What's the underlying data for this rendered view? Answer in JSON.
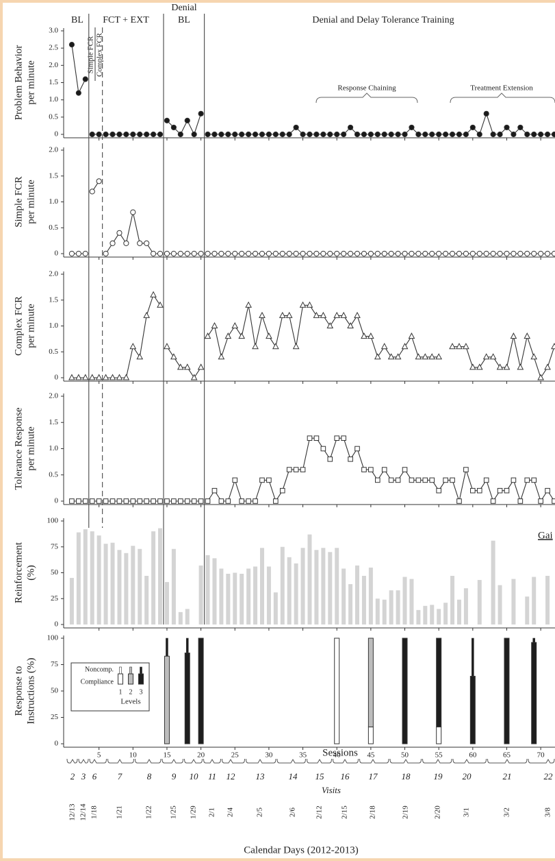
{
  "chart_data": [
    {
      "type": "line",
      "ylabel": [
        "Problem Behavior",
        "per minute"
      ],
      "xlim": [
        0,
        72
      ],
      "ylim": [
        0,
        3
      ],
      "yticks": [
        0,
        0.5,
        {
          "value": 1,
          "label": "1.0"
        },
        1.5,
        {
          "value": 2,
          "label": "2.0"
        },
        2.5,
        {
          "value": 3,
          "label": "3.0"
        }
      ],
      "marker": "filled-circle",
      "x": [
        1,
        2,
        3,
        4,
        5,
        6,
        7,
        8,
        9,
        10,
        11,
        12,
        13,
        14,
        15,
        16,
        17,
        18,
        19,
        20,
        21,
        22,
        23,
        24,
        25,
        26,
        27,
        28,
        29,
        30,
        31,
        32,
        33,
        34,
        35,
        36,
        37,
        38,
        39,
        40,
        41,
        42,
        43,
        44,
        45,
        46,
        47,
        48,
        49,
        50,
        51,
        52,
        53,
        54,
        55,
        56,
        57,
        58,
        59,
        60,
        61,
        62,
        63,
        64,
        65,
        66,
        67,
        68,
        69,
        70,
        71,
        72
      ],
      "values": [
        2.6,
        1.2,
        1.6,
        0,
        0,
        0,
        0,
        0,
        0,
        0,
        0,
        0,
        0,
        0,
        0.4,
        0.2,
        0,
        0.4,
        0,
        0.6,
        0,
        0,
        0,
        0,
        0,
        0,
        0,
        0,
        0,
        0,
        0,
        0,
        0,
        0.2,
        0,
        0,
        0,
        0,
        0,
        0,
        0,
        0.2,
        0,
        0,
        0,
        0,
        0,
        0,
        0,
        0,
        0.2,
        0,
        0,
        0,
        0,
        0,
        0,
        0,
        0,
        0.2,
        0,
        0.6,
        0,
        0,
        0.2,
        0,
        0.2,
        0,
        0,
        0,
        0,
        0
      ]
    },
    {
      "type": "line",
      "ylabel": [
        "Simple FCR",
        "per minute"
      ],
      "xlim": [
        0,
        72
      ],
      "ylim": [
        0,
        2
      ],
      "yticks": [
        0,
        0.5,
        {
          "value": 1,
          "label": "1.0"
        },
        1.5,
        {
          "value": 2,
          "label": "2.0"
        }
      ],
      "marker": "open-circle",
      "x": [
        1,
        2,
        3,
        4,
        5,
        6,
        7,
        8,
        9,
        10,
        11,
        12,
        13,
        14,
        15,
        16,
        17,
        18,
        19,
        20,
        21,
        22,
        23,
        24,
        25,
        26,
        27,
        28,
        29,
        30,
        31,
        32,
        33,
        34,
        35,
        36,
        37,
        38,
        39,
        40,
        41,
        42,
        43,
        44,
        45,
        46,
        47,
        48,
        49,
        50,
        51,
        52,
        53,
        54,
        55,
        56,
        57,
        58,
        59,
        60,
        61,
        62,
        63,
        64,
        65,
        66,
        67,
        68,
        69,
        70,
        71,
        72
      ],
      "values": [
        0,
        0,
        0,
        1.2,
        1.4,
        0,
        0.2,
        0.4,
        0.2,
        0.8,
        0.2,
        0.2,
        0,
        0,
        0,
        0,
        0,
        0,
        0,
        0,
        0,
        0,
        0,
        0,
        0,
        0,
        0,
        0,
        0,
        0,
        0,
        0,
        0,
        0,
        0,
        0,
        0,
        0,
        0,
        0,
        0,
        0,
        0,
        0,
        0,
        0,
        0,
        0,
        0,
        0,
        0,
        0,
        0,
        0,
        0,
        0,
        0,
        0,
        0,
        0,
        0,
        0,
        0,
        0,
        0,
        0,
        0,
        0,
        0,
        0,
        0,
        0
      ]
    },
    {
      "type": "line",
      "ylabel": [
        "Complex FCR",
        "per minute"
      ],
      "xlim": [
        0,
        72
      ],
      "ylim": [
        0,
        2
      ],
      "yticks": [
        0,
        0.5,
        {
          "value": 1,
          "label": "1.0"
        },
        1.5,
        {
          "value": 2,
          "label": "2.0"
        }
      ],
      "marker": "open-triangle",
      "x": [
        1,
        2,
        3,
        4,
        5,
        6,
        7,
        8,
        9,
        10,
        11,
        12,
        13,
        14,
        15,
        16,
        17,
        18,
        19,
        20,
        21,
        22,
        23,
        24,
        25,
        26,
        27,
        28,
        29,
        30,
        31,
        32,
        33,
        34,
        35,
        36,
        37,
        38,
        39,
        40,
        41,
        42,
        43,
        44,
        45,
        46,
        47,
        48,
        49,
        50,
        51,
        52,
        53,
        54,
        55,
        56,
        57,
        58,
        59,
        60,
        61,
        62,
        63,
        64,
        65,
        66,
        67,
        68,
        69,
        70,
        71,
        72
      ],
      "values": [
        0,
        0,
        0,
        0,
        0,
        0,
        0,
        0,
        0,
        0.6,
        0.4,
        1.2,
        1.6,
        1.4,
        0.6,
        0.4,
        0.2,
        0.2,
        0,
        0.2,
        0.8,
        1,
        0.4,
        0.8,
        1,
        0.8,
        1.4,
        0.6,
        1.2,
        0.8,
        0.6,
        1.2,
        1.2,
        0.6,
        1.4,
        1.4,
        1.2,
        1.2,
        1,
        1.2,
        1.2,
        1,
        1.2,
        0.8,
        0.8,
        0.4,
        0.6,
        0.4,
        0.4,
        0.6,
        0.8,
        0.4,
        0.4,
        0.4,
        0.4,
        null,
        0.6,
        0.6,
        0.6,
        0.2,
        0.2,
        0.4,
        0.4,
        0.2,
        0.2,
        0.8,
        0.2,
        0.8,
        0.4,
        0,
        0.2,
        0.6
      ]
    },
    {
      "type": "line",
      "ylabel": [
        "Tolerance Response",
        "per minute"
      ],
      "xlim": [
        0,
        72
      ],
      "ylim": [
        0,
        2
      ],
      "yticks": [
        0,
        0.5,
        {
          "value": 1,
          "label": "1.0"
        },
        1.5,
        {
          "value": 2,
          "label": "2.0"
        }
      ],
      "marker": "open-square",
      "x": [
        1,
        2,
        3,
        4,
        5,
        6,
        7,
        8,
        9,
        10,
        11,
        12,
        13,
        14,
        15,
        16,
        17,
        18,
        19,
        20,
        21,
        22,
        23,
        24,
        25,
        26,
        27,
        28,
        29,
        30,
        31,
        32,
        33,
        34,
        35,
        36,
        37,
        38,
        39,
        40,
        41,
        42,
        43,
        44,
        45,
        46,
        47,
        48,
        49,
        50,
        51,
        52,
        53,
        54,
        55,
        56,
        57,
        58,
        59,
        60,
        61,
        62,
        63,
        64,
        65,
        66,
        67,
        68,
        69,
        70,
        71,
        72
      ],
      "values": [
        0,
        0,
        0,
        0,
        0,
        0,
        0,
        0,
        0,
        0,
        0,
        0,
        0,
        0,
        0,
        0,
        0,
        0,
        0,
        0,
        0,
        0.2,
        0,
        0,
        0.4,
        0,
        0,
        0,
        0.4,
        0.4,
        0,
        0.2,
        0.6,
        0.6,
        0.6,
        1.2,
        1.2,
        1,
        0.8,
        1.2,
        1.2,
        0.8,
        1,
        0.6,
        0.6,
        0.4,
        0.6,
        0.4,
        0.4,
        0.6,
        0.4,
        0.4,
        0.4,
        0.4,
        0.2,
        0.4,
        0.4,
        0,
        0.6,
        0.2,
        0.2,
        0.4,
        0,
        0.2,
        0.2,
        0.4,
        0,
        0.4,
        0.4,
        0,
        0.2,
        0
      ]
    },
    {
      "type": "bar",
      "ylabel": [
        "Reinforcement",
        "(%)"
      ],
      "xlim": [
        0,
        72
      ],
      "ylim": [
        0,
        100
      ],
      "yticks": [
        0,
        25,
        50,
        75,
        100
      ],
      "color": "#d4d4d4",
      "note": "Gai",
      "x": [
        1,
        2,
        3,
        4,
        5,
        6,
        7,
        8,
        9,
        10,
        11,
        12,
        13,
        14,
        15,
        16,
        17,
        18,
        19,
        20,
        21,
        22,
        23,
        24,
        25,
        26,
        27,
        28,
        29,
        30,
        31,
        32,
        33,
        34,
        35,
        36,
        37,
        38,
        39,
        40,
        41,
        42,
        43,
        44,
        45,
        46,
        47,
        48,
        49,
        50,
        51,
        52,
        53,
        54,
        55,
        56,
        57,
        58,
        59,
        60,
        61,
        62,
        63,
        64,
        65,
        66,
        67,
        68,
        69,
        70,
        71,
        72
      ],
      "values": [
        45,
        89,
        92,
        90,
        86,
        78,
        79,
        72,
        69,
        76,
        73,
        47,
        90,
        93,
        41,
        73,
        12,
        15,
        null,
        57,
        67,
        64,
        54,
        49,
        50,
        49,
        54,
        56,
        74,
        56,
        31,
        75,
        65,
        59,
        74,
        87,
        72,
        74,
        70,
        74,
        54,
        39,
        57,
        47,
        55,
        25,
        24,
        33,
        33,
        46,
        44,
        14,
        18,
        19,
        15,
        21,
        47,
        24,
        35,
        null,
        43,
        null,
        81,
        38,
        null,
        44,
        null,
        27,
        46,
        null,
        47,
        null
      ]
    },
    {
      "type": "stacked",
      "ylabel": [
        "Response to",
        "Instructions (%)"
      ],
      "xlabel": "Sessions",
      "xlim": [
        0,
        72
      ],
      "ylim": [
        0,
        100
      ],
      "yticks": [
        0,
        25,
        50,
        75,
        100
      ],
      "xticks": [
        5,
        10,
        15,
        20,
        25,
        30,
        35,
        40,
        45,
        50,
        55,
        60,
        65,
        70
      ],
      "legend": {
        "noncomp": "Noncomp.",
        "compliance": "Compliance",
        "title": "Levels"
      },
      "x": [
        15,
        18,
        20,
        40,
        45,
        50,
        55,
        60,
        65,
        69
      ],
      "series": [
        {
          "name": "1",
          "color": "#ffffff",
          "values": [
            0,
            0,
            0,
            100,
            16,
            0,
            16,
            0,
            0,
            0
          ],
          "noncomp_values": [
            0,
            0,
            0,
            0,
            0,
            0,
            0,
            0,
            0,
            0
          ]
        },
        {
          "name": "2",
          "color": "#bdbdbd",
          "values": [
            83,
            0,
            0,
            0,
            84,
            0,
            0,
            0,
            0,
            0
          ],
          "noncomp_values": [
            0,
            0,
            0,
            0,
            0,
            0,
            0,
            0,
            0,
            0
          ]
        },
        {
          "name": "3",
          "color": "#1e1e1e",
          "values": [
            0,
            86,
            100,
            0,
            0,
            100,
            84,
            64,
            100,
            96
          ],
          "noncomp_values": [
            17,
            14,
            0,
            0,
            0,
            0,
            0,
            36,
            0,
            4
          ]
        }
      ]
    }
  ],
  "phases": {
    "labels": [
      "BL",
      "FCT + EXT",
      [
        "Denial",
        "BL"
      ],
      "Denial and Delay Tolerance Training"
    ],
    "changes": [
      {
        "session": 3.5
      },
      {
        "session": 5.5,
        "dashed": true
      },
      {
        "session": 14.5
      },
      {
        "session": 20.5
      }
    ]
  },
  "annotations": {
    "simple": "Simple FCR",
    "complex": "Complex FCR",
    "chaining": "Response Chaining",
    "extension": "Treatment Extension"
  },
  "visits": {
    "label": "Visits",
    "numbers": [
      2,
      3,
      6,
      7,
      8,
      9,
      10,
      11,
      12,
      13,
      14,
      15,
      16,
      17,
      18,
      19,
      20,
      21,
      22
    ]
  },
  "dates": {
    "label": "Calendar Days (2012-2013)",
    "values": [
      "12/13",
      "12/14",
      "1/18",
      "1/21",
      "1/22",
      "1/25",
      "1/29",
      "2/1",
      "2/4",
      "2/5",
      "2/6",
      "2/12",
      "2/15",
      "2/18",
      "2/19",
      "2/20",
      "3/1",
      "3/2",
      "3/8"
    ]
  }
}
